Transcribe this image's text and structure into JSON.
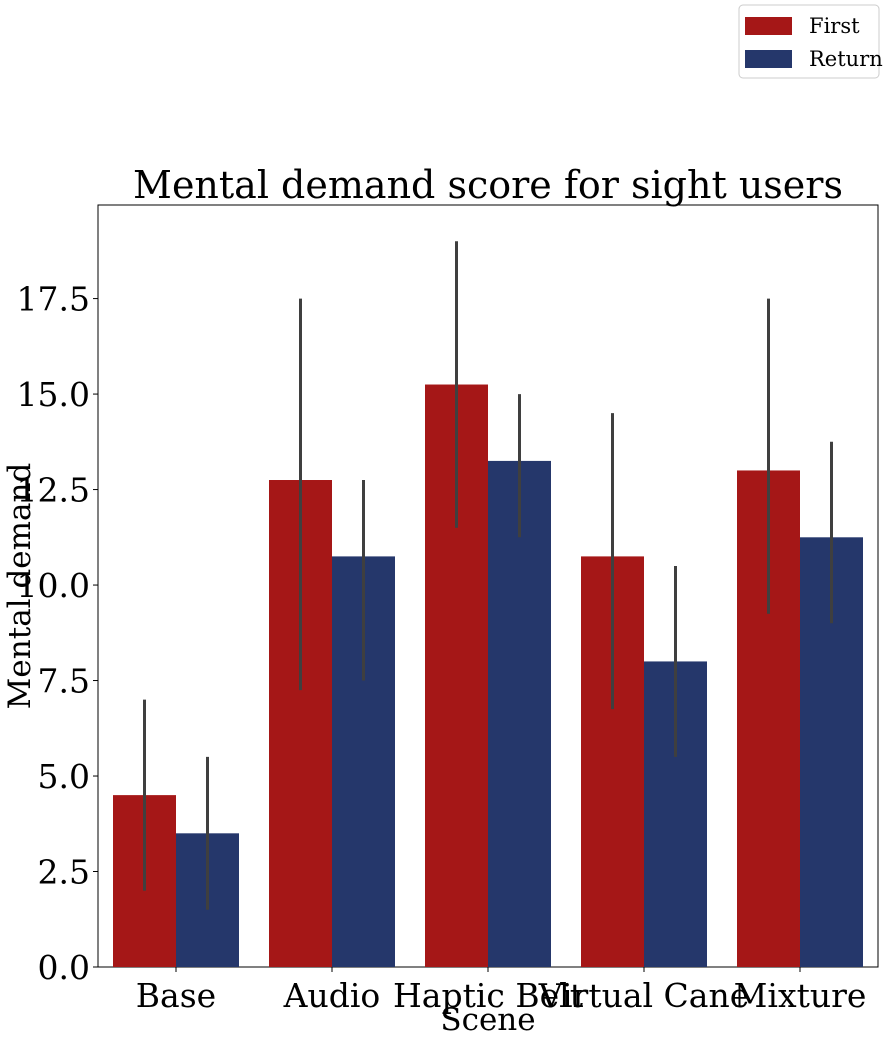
{
  "chart_data": {
    "type": "bar",
    "title": "Mental demand score for sight users",
    "xlabel": "Scene",
    "ylabel": "Mental demand",
    "categories": [
      "Base",
      "Audio",
      "Haptic Belt",
      "Virtual Cane",
      "Mixture"
    ],
    "series": [
      {
        "name": "First",
        "color": "#a51717",
        "values": [
          4.5,
          12.75,
          15.25,
          10.75,
          13.0
        ],
        "ci_low": [
          2.0,
          7.25,
          11.5,
          6.75,
          9.25
        ],
        "ci_high": [
          7.0,
          17.5,
          19.0,
          14.5,
          17.5
        ]
      },
      {
        "name": "Return",
        "color": "#25376b",
        "values": [
          3.5,
          10.75,
          13.25,
          8.0,
          11.25
        ],
        "ci_low": [
          1.5,
          7.5,
          11.25,
          5.5,
          9.0
        ],
        "ci_high": [
          5.5,
          12.75,
          15.0,
          10.5,
          13.75
        ]
      }
    ],
    "ylim": [
      0,
      20
    ],
    "yticks": [
      "0.0",
      "2.5",
      "5.0",
      "7.5",
      "10.0",
      "12.5",
      "15.0",
      "17.5"
    ],
    "ytick_values": [
      0,
      2.5,
      5,
      7.5,
      10,
      12.5,
      15,
      17.5
    ],
    "errorbar_color": "#3f3f3f",
    "grid": false,
    "legend_position": "top-right"
  }
}
